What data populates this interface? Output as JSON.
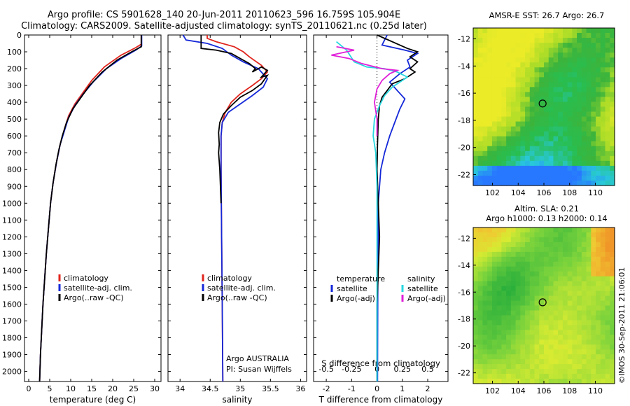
{
  "title_line1": "Argo profile: CS 5901628_140 20-Jun-2011 20110623_596 16.759S 105.904E",
  "title_line2": "Climatology: CARS2009. Satellite-adjusted climatology: synTS_20110621.nc (0.25d later)",
  "stamp": "©IMOS 30-Sep-2011 21:06:01",
  "map_top_title": "AMSR-E SST: 26.7 Argo: 26.7",
  "map_bottom_title1": "Altim. SLA: 0.21",
  "map_bottom_title2": "Argo h1000: 0.13 h2000: 0.14",
  "colors": {
    "climatology": "#e0241c",
    "satellite": "#1428d8",
    "argo": "#000000",
    "sat_s": "#28d8e0",
    "argo_s": "#e020d8"
  },
  "chart_data": [
    {
      "type": "line",
      "xlabel": "temperature (deg C)",
      "xlim": [
        -1,
        31.5
      ],
      "xticks": [
        0,
        5,
        10,
        15,
        20,
        25,
        30
      ],
      "ylim": [
        2060,
        0
      ],
      "yticks": [
        0,
        100,
        200,
        300,
        400,
        500,
        600,
        700,
        800,
        900,
        1000,
        1100,
        1200,
        1300,
        1400,
        1500,
        1600,
        1700,
        1800,
        1900,
        2000
      ],
      "legend": [
        "climatology",
        "satellite-adj. clim.",
        "Argo(..raw -QC)"
      ],
      "series": [
        {
          "name": "climatology",
          "color": "climatology",
          "points": [
            [
              26.8,
              0
            ],
            [
              26.8,
              55
            ],
            [
              25.5,
              75
            ],
            [
              22,
              120
            ],
            [
              18,
              190
            ],
            [
              15,
              270
            ],
            [
              13,
              340
            ],
            [
              11,
              410
            ],
            [
              9.5,
              480
            ],
            [
              8.5,
              560
            ],
            [
              7.5,
              650
            ],
            [
              6.6,
              760
            ],
            [
              5.8,
              880
            ],
            [
              5.2,
              1000
            ],
            [
              4.7,
              1150
            ],
            [
              4.2,
              1300
            ],
            [
              3.8,
              1450
            ],
            [
              3.4,
              1600
            ],
            [
              3.1,
              1750
            ],
            [
              2.8,
              1900
            ],
            [
              2.6,
              2060
            ]
          ]
        },
        {
          "name": "satellite",
          "color": "satellite",
          "points": [
            [
              26.9,
              0
            ],
            [
              26.9,
              65
            ],
            [
              25.5,
              90
            ],
            [
              22,
              140
            ],
            [
              18.5,
              200
            ],
            [
              15.5,
              275
            ],
            [
              13,
              350
            ],
            [
              11,
              420
            ],
            [
              9.5,
              490
            ],
            [
              8.5,
              570
            ],
            [
              7.5,
              650
            ],
            [
              6.6,
              760
            ],
            [
              5.8,
              880
            ],
            [
              5.2,
              1000
            ],
            [
              4.7,
              1150
            ],
            [
              4.2,
              1300
            ],
            [
              3.8,
              1450
            ],
            [
              3.4,
              1600
            ],
            [
              3.1,
              1750
            ],
            [
              2.8,
              1900
            ],
            [
              2.6,
              2060
            ]
          ]
        },
        {
          "name": "Argo",
          "color": "argo",
          "points": [
            [
              26.8,
              0
            ],
            [
              26.8,
              70
            ],
            [
              24.5,
              100
            ],
            [
              21,
              150
            ],
            [
              17.5,
              220
            ],
            [
              14.5,
              300
            ],
            [
              12.2,
              380
            ],
            [
              10.5,
              440
            ],
            [
              9,
              520
            ],
            [
              8,
              600
            ],
            [
              7.2,
              680
            ],
            [
              6.5,
              770
            ],
            [
              5.8,
              880
            ],
            [
              5.2,
              1000
            ],
            [
              4.7,
              1150
            ],
            [
              4.2,
              1300
            ],
            [
              3.8,
              1450
            ],
            [
              3.4,
              1600
            ],
            [
              3.1,
              1750
            ],
            [
              2.8,
              1900
            ],
            [
              2.6,
              2060
            ]
          ]
        }
      ]
    },
    {
      "type": "line",
      "xlabel": "salinity",
      "xlim": [
        33.8,
        36.1
      ],
      "xticks": [
        34,
        34.5,
        35,
        35.5,
        36
      ],
      "ylim": [
        2060,
        0
      ],
      "legend": [
        "climatology",
        "satellite-adj. clim.",
        "Argo(..raw -QC)"
      ],
      "annotation": [
        "Argo AUSTRALIA",
        "PI: Susan Wijffels"
      ],
      "series": [
        {
          "name": "climatology",
          "color": "climatology",
          "points": [
            [
              34.45,
              0
            ],
            [
              34.45,
              20
            ],
            [
              34.6,
              40
            ],
            [
              34.9,
              70
            ],
            [
              35.05,
              100
            ],
            [
              35.15,
              130
            ],
            [
              35.35,
              180
            ],
            [
              35.45,
              220
            ],
            [
              35.35,
              260
            ],
            [
              35.2,
              300
            ],
            [
              35.0,
              350
            ],
            [
              34.85,
              400
            ],
            [
              34.75,
              460
            ],
            [
              34.7,
              520
            ],
            [
              34.68,
              600
            ],
            [
              34.68,
              800
            ],
            [
              34.69,
              1200
            ],
            [
              34.7,
              1600
            ],
            [
              34.71,
              2060
            ]
          ]
        },
        {
          "name": "satellite",
          "color": "satellite",
          "points": [
            [
              34.05,
              0
            ],
            [
              34.1,
              30
            ],
            [
              34.45,
              50
            ],
            [
              34.7,
              80
            ],
            [
              34.85,
              120
            ],
            [
              35.05,
              160
            ],
            [
              35.3,
              200
            ],
            [
              35.45,
              260
            ],
            [
              35.38,
              310
            ],
            [
              35.2,
              360
            ],
            [
              35.0,
              410
            ],
            [
              34.8,
              460
            ],
            [
              34.7,
              520
            ],
            [
              34.68,
              600
            ],
            [
              34.68,
              800
            ],
            [
              34.69,
              1200
            ],
            [
              34.7,
              1600
            ],
            [
              34.71,
              2060
            ]
          ]
        },
        {
          "name": "Argo",
          "color": "argo",
          "points": [
            [
              34.35,
              0
            ],
            [
              34.35,
              80
            ],
            [
              34.6,
              90
            ],
            [
              34.85,
              110
            ],
            [
              34.95,
              130
            ],
            [
              35.05,
              150
            ],
            [
              35.15,
              170
            ],
            [
              35.25,
              200
            ],
            [
              35.2,
              220
            ],
            [
              35.35,
              190
            ],
            [
              35.45,
              210
            ],
            [
              35.35,
              250
            ],
            [
              35.45,
              240
            ],
            [
              35.35,
              290
            ],
            [
              35.2,
              330
            ],
            [
              35.0,
              370
            ],
            [
              34.85,
              420
            ],
            [
              34.72,
              470
            ],
            [
              34.66,
              520
            ],
            [
              34.64,
              580
            ],
            [
              34.65,
              650
            ],
            [
              34.64,
              700
            ],
            [
              34.66,
              800
            ],
            [
              34.68,
              1000
            ]
          ]
        }
      ]
    },
    {
      "type": "line",
      "xlabel": "T difference from climatology",
      "xlabel_top": "S difference from climatology",
      "xlim": [
        -2.5,
        2.8
      ],
      "xticks": [
        -2,
        -1,
        0,
        1,
        2
      ],
      "xticks_top": [
        "-0.5",
        "-0.25",
        "0",
        "0.25",
        "0.5"
      ],
      "ylim": [
        2060,
        0
      ],
      "legend_temperature": [
        "temperature",
        "satellite",
        "Argo(-adj)"
      ],
      "legend_salinity": [
        "salinity",
        "satellite",
        "Argo(-adj)"
      ],
      "series": [
        {
          "name": "T satellite",
          "color": "satellite",
          "points": [
            [
              0.4,
              0
            ],
            [
              0.3,
              30
            ],
            [
              0.2,
              60
            ],
            [
              1.1,
              90
            ],
            [
              1.6,
              110
            ],
            [
              1.2,
              150
            ],
            [
              1.3,
              190
            ],
            [
              0.9,
              230
            ],
            [
              0.5,
              280
            ],
            [
              0.8,
              330
            ],
            [
              1.1,
              380
            ],
            [
              0.9,
              440
            ],
            [
              0.7,
              520
            ],
            [
              0.5,
              600
            ],
            [
              0.3,
              700
            ],
            [
              0.15,
              800
            ],
            [
              0.05,
              1000
            ],
            [
              0.03,
              1500
            ],
            [
              0.02,
              2060
            ]
          ]
        },
        {
          "name": "T Argo",
          "color": "argo",
          "points": [
            [
              0,
              0
            ],
            [
              1.2,
              80
            ],
            [
              1.6,
              100
            ],
            [
              1.3,
              130
            ],
            [
              1.6,
              160
            ],
            [
              1.3,
              200
            ],
            [
              1.5,
              220
            ],
            [
              1.1,
              260
            ],
            [
              0.6,
              290
            ],
            [
              0.4,
              330
            ],
            [
              0.2,
              370
            ],
            [
              0.1,
              420
            ],
            [
              0.05,
              500
            ],
            [
              0.02,
              650
            ],
            [
              0,
              800
            ],
            [
              0.05,
              1000
            ],
            [
              0.1,
              1200
            ],
            [
              0.05,
              1400
            ],
            [
              0,
              1600
            ],
            [
              0,
              2060
            ]
          ]
        },
        {
          "name": "S satellite",
          "color": "sat_s",
          "points": [
            [
              -1.6,
              40
            ],
            [
              -1.2,
              90
            ],
            [
              -0.9,
              160
            ],
            [
              -0.4,
              190
            ],
            [
              0.3,
              200
            ],
            [
              0.8,
              220
            ],
            [
              1.2,
              250
            ],
            [
              0.6,
              310
            ],
            [
              0.3,
              360
            ],
            [
              0.1,
              420
            ],
            [
              -0.1,
              500
            ],
            [
              -0.15,
              600
            ],
            [
              -0.05,
              700
            ],
            [
              0,
              900
            ],
            [
              0,
              1200
            ],
            [
              0,
              1600
            ],
            [
              0,
              2060
            ]
          ]
        },
        {
          "name": "S Argo",
          "color": "argo_s",
          "points": [
            [
              -1.6,
              70
            ],
            [
              -0.9,
              90
            ],
            [
              -1.8,
              120
            ],
            [
              -1.1,
              140
            ],
            [
              -0.6,
              170
            ],
            [
              0.2,
              200
            ],
            [
              0.8,
              210
            ],
            [
              0.5,
              230
            ],
            [
              0.2,
              270
            ],
            [
              0,
              320
            ],
            [
              -0.1,
              400
            ],
            [
              -0.05,
              450
            ],
            [
              0,
              500
            ],
            [
              0,
              600
            ]
          ]
        }
      ]
    },
    {
      "type": "heatmap",
      "title": "AMSR-E SST: 26.7 Argo: 26.7",
      "xlim": [
        100.5,
        111.5
      ],
      "ylim": [
        -22.8,
        -11.2
      ],
      "xticks": [
        102,
        104,
        106,
        108,
        110
      ],
      "yticks": [
        -12,
        -14,
        -16,
        -18,
        -20,
        -22
      ],
      "marker": [
        105.9,
        -16.76
      ]
    },
    {
      "type": "heatmap",
      "title": "Altim. SLA: 0.21 / Argo h1000: 0.13 h2000: 0.14",
      "xlim": [
        100.5,
        111.5
      ],
      "ylim": [
        -22.8,
        -11.2
      ],
      "xticks": [
        102,
        104,
        106,
        108,
        110
      ],
      "yticks": [
        -12,
        -14,
        -16,
        -18,
        -20,
        -22
      ],
      "marker": [
        105.9,
        -16.76
      ]
    }
  ]
}
